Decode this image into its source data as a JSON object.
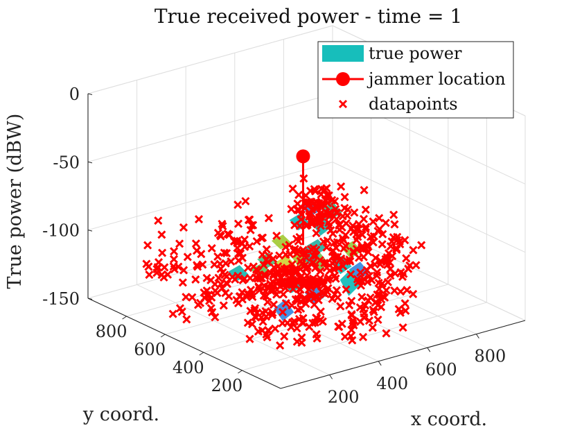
{
  "chart_data": {
    "type": "scatter",
    "title": "True received power - time = 1",
    "xlabel": "x coord.",
    "ylabel": "y coord.",
    "zlabel": "True power (dBW)",
    "xlim": [
      0,
      1000
    ],
    "ylim": [
      0,
      1000
    ],
    "zlim": [
      -150,
      0
    ],
    "x_ticks": [
      "200",
      "400",
      "600",
      "800"
    ],
    "y_ticks": [
      "200",
      "400",
      "600",
      "800"
    ],
    "z_ticks": [
      "0",
      "-50",
      "-100",
      "-150"
    ],
    "grid": true,
    "view": "3d",
    "legend": {
      "placement": "top-right",
      "entries": [
        "true power",
        "jammer location",
        "datapoints"
      ]
    },
    "colors": {
      "surface": "#17bebb",
      "jammer": "#ff0000",
      "datapoints": "#ff0000",
      "surface_high": "#e3d438",
      "surface_low": "#3d8be0"
    },
    "jammer": {
      "x": 470,
      "y": 480,
      "z_base": -100,
      "z_top": -35
    },
    "surface_patches": [
      {
        "x": 480,
        "y": 500,
        "z": -117,
        "dz": 10,
        "color": "#a6cc3c"
      },
      {
        "x": 520,
        "y": 460,
        "z": -118,
        "dz": 8,
        "color": "#7cc75a"
      },
      {
        "x": 430,
        "y": 520,
        "z": -118,
        "dz": 7,
        "color": "#d2d33a"
      },
      {
        "x": 560,
        "y": 560,
        "z": -121,
        "dz": 9,
        "color": "#17bebb"
      },
      {
        "x": 620,
        "y": 600,
        "z": -120,
        "dz": 6,
        "color": "#2fb3a6"
      },
      {
        "x": 680,
        "y": 650,
        "z": -112,
        "dz": 10,
        "color": "#1fb8b0"
      },
      {
        "x": 760,
        "y": 700,
        "z": -108,
        "dz": 8,
        "color": "#38c197"
      },
      {
        "x": 380,
        "y": 420,
        "z": -124,
        "dz": 8,
        "color": "#17bebb"
      },
      {
        "x": 300,
        "y": 600,
        "z": -123,
        "dz": 6,
        "color": "#21b9b2"
      },
      {
        "x": 250,
        "y": 300,
        "z": -130,
        "dz": 10,
        "color": "#3d8be0"
      },
      {
        "x": 620,
        "y": 380,
        "z": -124,
        "dz": 8,
        "color": "#3d8be0"
      },
      {
        "x": 820,
        "y": 880,
        "z": -120,
        "dz": 6,
        "color": "#3d8be0"
      },
      {
        "x": 520,
        "y": 300,
        "z": -125,
        "dz": 14,
        "color": "#17bebb"
      },
      {
        "x": 450,
        "y": 640,
        "z": -124,
        "dz": 6,
        "color": "#4fc38a"
      },
      {
        "x": 700,
        "y": 520,
        "z": -121,
        "dz": 7,
        "color": "#9acb46"
      },
      {
        "x": 360,
        "y": 560,
        "z": -121,
        "dz": 5,
        "color": "#6dc564"
      },
      {
        "x": 580,
        "y": 420,
        "z": -120,
        "dz": 8,
        "color": "#17bebb"
      },
      {
        "x": 400,
        "y": 330,
        "z": -128,
        "dz": 10,
        "color": "#3d8be0"
      },
      {
        "x": 660,
        "y": 740,
        "z": -113,
        "dz": 7,
        "color": "#17bebb"
      },
      {
        "x": 540,
        "y": 680,
        "z": -117,
        "dz": 5,
        "color": "#a6cc3c"
      }
    ],
    "datapoint_clusters": [
      {
        "cx": 470,
        "cy": 480,
        "cz": -120,
        "sx": 60,
        "sy": 60,
        "sz": 7,
        "n": 80
      },
      {
        "cx": 620,
        "cy": 600,
        "cz": -117,
        "sx": 100,
        "sy": 70,
        "sz": 7,
        "n": 70
      },
      {
        "cx": 780,
        "cy": 760,
        "cz": -108,
        "sx": 70,
        "sy": 90,
        "sz": 6,
        "n": 60
      },
      {
        "cx": 380,
        "cy": 420,
        "cz": -125,
        "sx": 70,
        "sy": 70,
        "sz": 8,
        "n": 60
      },
      {
        "cx": 300,
        "cy": 620,
        "cz": -124,
        "sx": 70,
        "sy": 90,
        "sz": 9,
        "n": 55
      },
      {
        "cx": 250,
        "cy": 280,
        "cz": -132,
        "sx": 60,
        "sy": 70,
        "sz": 8,
        "n": 45
      },
      {
        "cx": 560,
        "cy": 300,
        "cz": -130,
        "sx": 90,
        "sy": 50,
        "sz": 8,
        "n": 40
      },
      {
        "cx": 720,
        "cy": 420,
        "cz": -124,
        "sx": 100,
        "sy": 60,
        "sz": 7,
        "n": 40
      },
      {
        "cx": 860,
        "cy": 900,
        "cz": -118,
        "sx": 50,
        "sy": 50,
        "sz": 7,
        "n": 35
      },
      {
        "cx": 140,
        "cy": 560,
        "cz": -125,
        "sx": 50,
        "sy": 60,
        "sz": 8,
        "n": 30
      },
      {
        "cx": 480,
        "cy": 160,
        "cz": -130,
        "sx": 70,
        "sy": 50,
        "sz": 8,
        "n": 30
      },
      {
        "cx": 880,
        "cy": 620,
        "cz": -124,
        "sx": 50,
        "sy": 70,
        "sz": 8,
        "n": 30
      },
      {
        "cx": 420,
        "cy": 780,
        "cz": -110,
        "sx": 80,
        "sy": 60,
        "sz": 7,
        "n": 35
      },
      {
        "cx": 160,
        "cy": 820,
        "cz": -118,
        "sx": 50,
        "sy": 40,
        "sz": 8,
        "n": 20
      }
    ]
  }
}
